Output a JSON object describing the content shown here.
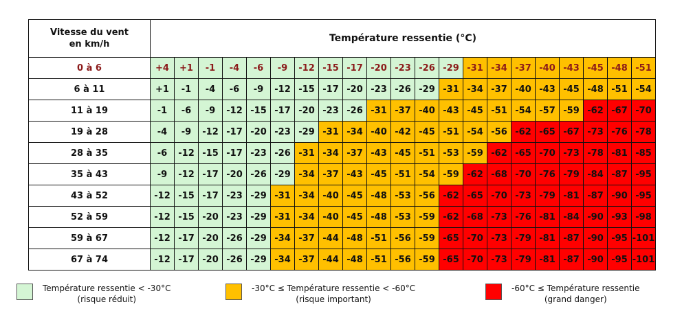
{
  "chart_data": {
    "type": "table",
    "title": "Température ressentie (°C)",
    "row_header": "Vitesse du vent en km/h",
    "row_header_lines": [
      "Vitesse du vent",
      "en km/h"
    ],
    "rows": [
      {
        "label": "0 à 6",
        "values": [
          "+4",
          "+1",
          "-1",
          "-4",
          "-6",
          "-9",
          "-12",
          "-15",
          "-17",
          "-20",
          "-23",
          "-26",
          "-29",
          "-31",
          "-34",
          "-37",
          "-40",
          "-43",
          "-45",
          "-48",
          "-51"
        ]
      },
      {
        "label": "6 à 11",
        "values": [
          "+1",
          "-1",
          "-4",
          "-6",
          "-9",
          "-12",
          "-15",
          "-17",
          "-20",
          "-23",
          "-26",
          "-29",
          "-31",
          "-34",
          "-37",
          "-40",
          "-43",
          "-45",
          "-48",
          "-51",
          "-54"
        ]
      },
      {
        "label": "11 à 19",
        "values": [
          "-1",
          "-6",
          "-9",
          "-12",
          "-15",
          "-17",
          "-20",
          "-23",
          "-26",
          "-31",
          "-37",
          "-40",
          "-43",
          "-45",
          "-51",
          "-54",
          "-57",
          "-59",
          "-62",
          "-67",
          "-70"
        ]
      },
      {
        "label": "19 à 28",
        "values": [
          "-4",
          "-9",
          "-12",
          "-17",
          "-20",
          "-23",
          "-29",
          "-31",
          "-34",
          "-40",
          "-42",
          "-45",
          "-51",
          "-54",
          "-56",
          "-62",
          "-65",
          "-67",
          "-73",
          "-76",
          "-78"
        ]
      },
      {
        "label": "28 à 35",
        "values": [
          "-6",
          "-12",
          "-15",
          "-17",
          "-23",
          "-26",
          "-31",
          "-34",
          "-37",
          "-43",
          "-45",
          "-51",
          "-53",
          "-59",
          "-62",
          "-65",
          "-70",
          "-73",
          "-78",
          "-81",
          "-85"
        ]
      },
      {
        "label": "35 à 43",
        "values": [
          "-9",
          "-12",
          "-17",
          "-20",
          "-26",
          "-29",
          "-34",
          "-37",
          "-43",
          "-45",
          "-51",
          "-54",
          "-59",
          "-62",
          "-68",
          "-70",
          "-76",
          "-79",
          "-84",
          "-87",
          "-95"
        ]
      },
      {
        "label": "43 à 52",
        "values": [
          "-12",
          "-15",
          "-17",
          "-23",
          "-29",
          "-31",
          "-34",
          "-40",
          "-45",
          "-48",
          "-53",
          "-56",
          "-62",
          "-65",
          "-70",
          "-73",
          "-79",
          "-81",
          "-87",
          "-90",
          "-95"
        ]
      },
      {
        "label": "52 à 59",
        "values": [
          "-12",
          "-15",
          "-20",
          "-23",
          "-29",
          "-31",
          "-34",
          "-40",
          "-45",
          "-48",
          "-53",
          "-59",
          "-62",
          "-68",
          "-73",
          "-76",
          "-81",
          "-84",
          "-90",
          "-93",
          "-98"
        ]
      },
      {
        "label": "59 à 67",
        "values": [
          "-12",
          "-17",
          "-20",
          "-26",
          "-29",
          "-34",
          "-37",
          "-44",
          "-48",
          "-51",
          "-56",
          "-59",
          "-65",
          "-70",
          "-73",
          "-79",
          "-81",
          "-87",
          "-90",
          "-95",
          "-101"
        ]
      },
      {
        "label": "67 à 74",
        "values": [
          "-12",
          "-17",
          "-20",
          "-26",
          "-29",
          "-34",
          "-37",
          "-44",
          "-48",
          "-51",
          "-56",
          "-59",
          "-65",
          "-70",
          "-73",
          "-79",
          "-81",
          "-87",
          "-90",
          "-95",
          "-101"
        ]
      }
    ],
    "categories": [
      {
        "color": "#d4f5d4",
        "line1": "Température ressentie < -30°C",
        "line2": "(risque réduit)"
      },
      {
        "color": "#ffc000",
        "line1": "-30°C ≤ Température ressentie < -60°C",
        "line2": "(risque important)"
      },
      {
        "color": "#ff0000",
        "line1": "-60°C ≤ Température ressentie",
        "line2": "(grand danger)"
      }
    ],
    "first_row_text_color": "#8b1a1a"
  }
}
